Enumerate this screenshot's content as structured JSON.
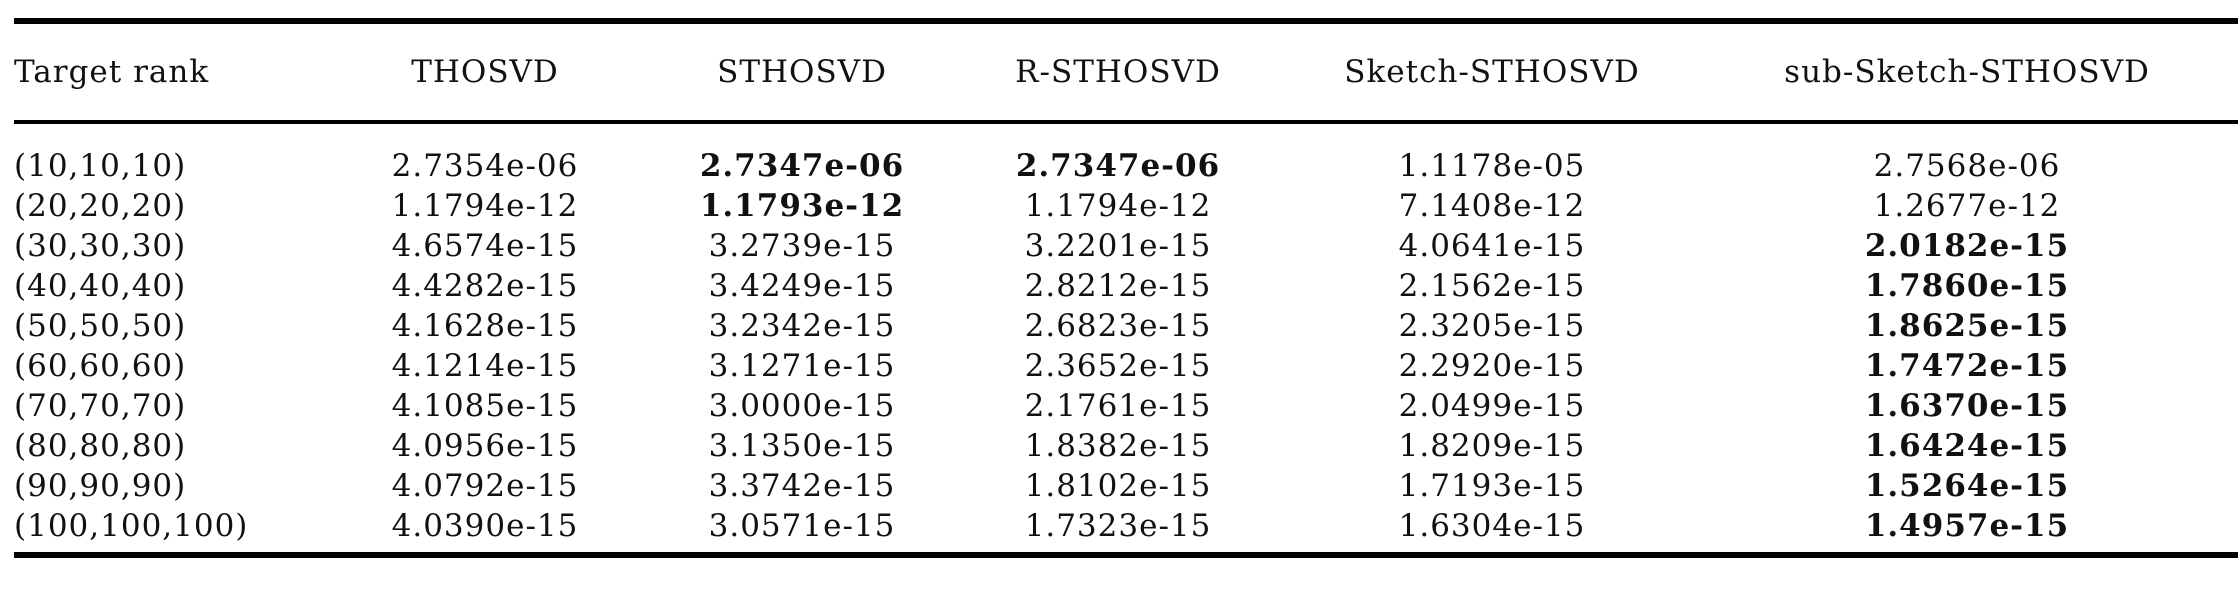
{
  "table": {
    "headers": [
      "Target rank",
      "THOSVD",
      "STHOSVD",
      "R-STHOSVD",
      "Sketch-STHOSVD",
      "sub-Sketch-STHOSVD"
    ],
    "rows": [
      {
        "rank": "(10,10,10)",
        "values": [
          "2.7354e-06",
          "2.7347e-06",
          "2.7347e-06",
          "1.1178e-05",
          "2.7568e-06"
        ],
        "bold": [
          false,
          true,
          true,
          false,
          false
        ]
      },
      {
        "rank": "(20,20,20)",
        "values": [
          "1.1794e-12",
          "1.1793e-12",
          "1.1794e-12",
          "7.1408e-12",
          "1.2677e-12"
        ],
        "bold": [
          false,
          true,
          false,
          false,
          false
        ]
      },
      {
        "rank": "(30,30,30)",
        "values": [
          "4.6574e-15",
          "3.2739e-15",
          "3.2201e-15",
          "4.0641e-15",
          "2.0182e-15"
        ],
        "bold": [
          false,
          false,
          false,
          false,
          true
        ]
      },
      {
        "rank": "(40,40,40)",
        "values": [
          "4.4282e-15",
          "3.4249e-15",
          "2.8212e-15",
          "2.1562e-15",
          "1.7860e-15"
        ],
        "bold": [
          false,
          false,
          false,
          false,
          true
        ]
      },
      {
        "rank": "(50,50,50)",
        "values": [
          "4.1628e-15",
          "3.2342e-15",
          "2.6823e-15",
          "2.3205e-15",
          "1.8625e-15"
        ],
        "bold": [
          false,
          false,
          false,
          false,
          true
        ]
      },
      {
        "rank": "(60,60,60)",
        "values": [
          "4.1214e-15",
          "3.1271e-15",
          "2.3652e-15",
          "2.2920e-15",
          "1.7472e-15"
        ],
        "bold": [
          false,
          false,
          false,
          false,
          true
        ]
      },
      {
        "rank": "(70,70,70)",
        "values": [
          "4.1085e-15",
          "3.0000e-15",
          "2.1761e-15",
          "2.0499e-15",
          "1.6370e-15"
        ],
        "bold": [
          false,
          false,
          false,
          false,
          true
        ]
      },
      {
        "rank": "(80,80,80)",
        "values": [
          "4.0956e-15",
          "3.1350e-15",
          "1.8382e-15",
          "1.8209e-15",
          "1.6424e-15"
        ],
        "bold": [
          false,
          false,
          false,
          false,
          true
        ]
      },
      {
        "rank": "(90,90,90)",
        "values": [
          "4.0792e-15",
          "3.3742e-15",
          "1.8102e-15",
          "1.7193e-15",
          "1.5264e-15"
        ],
        "bold": [
          false,
          false,
          false,
          false,
          true
        ]
      },
      {
        "rank": "(100,100,100)",
        "values": [
          "4.0390e-15",
          "3.0571e-15",
          "1.7323e-15",
          "1.6304e-15",
          "1.4957e-15"
        ],
        "bold": [
          false,
          false,
          false,
          false,
          true
        ]
      }
    ]
  }
}
